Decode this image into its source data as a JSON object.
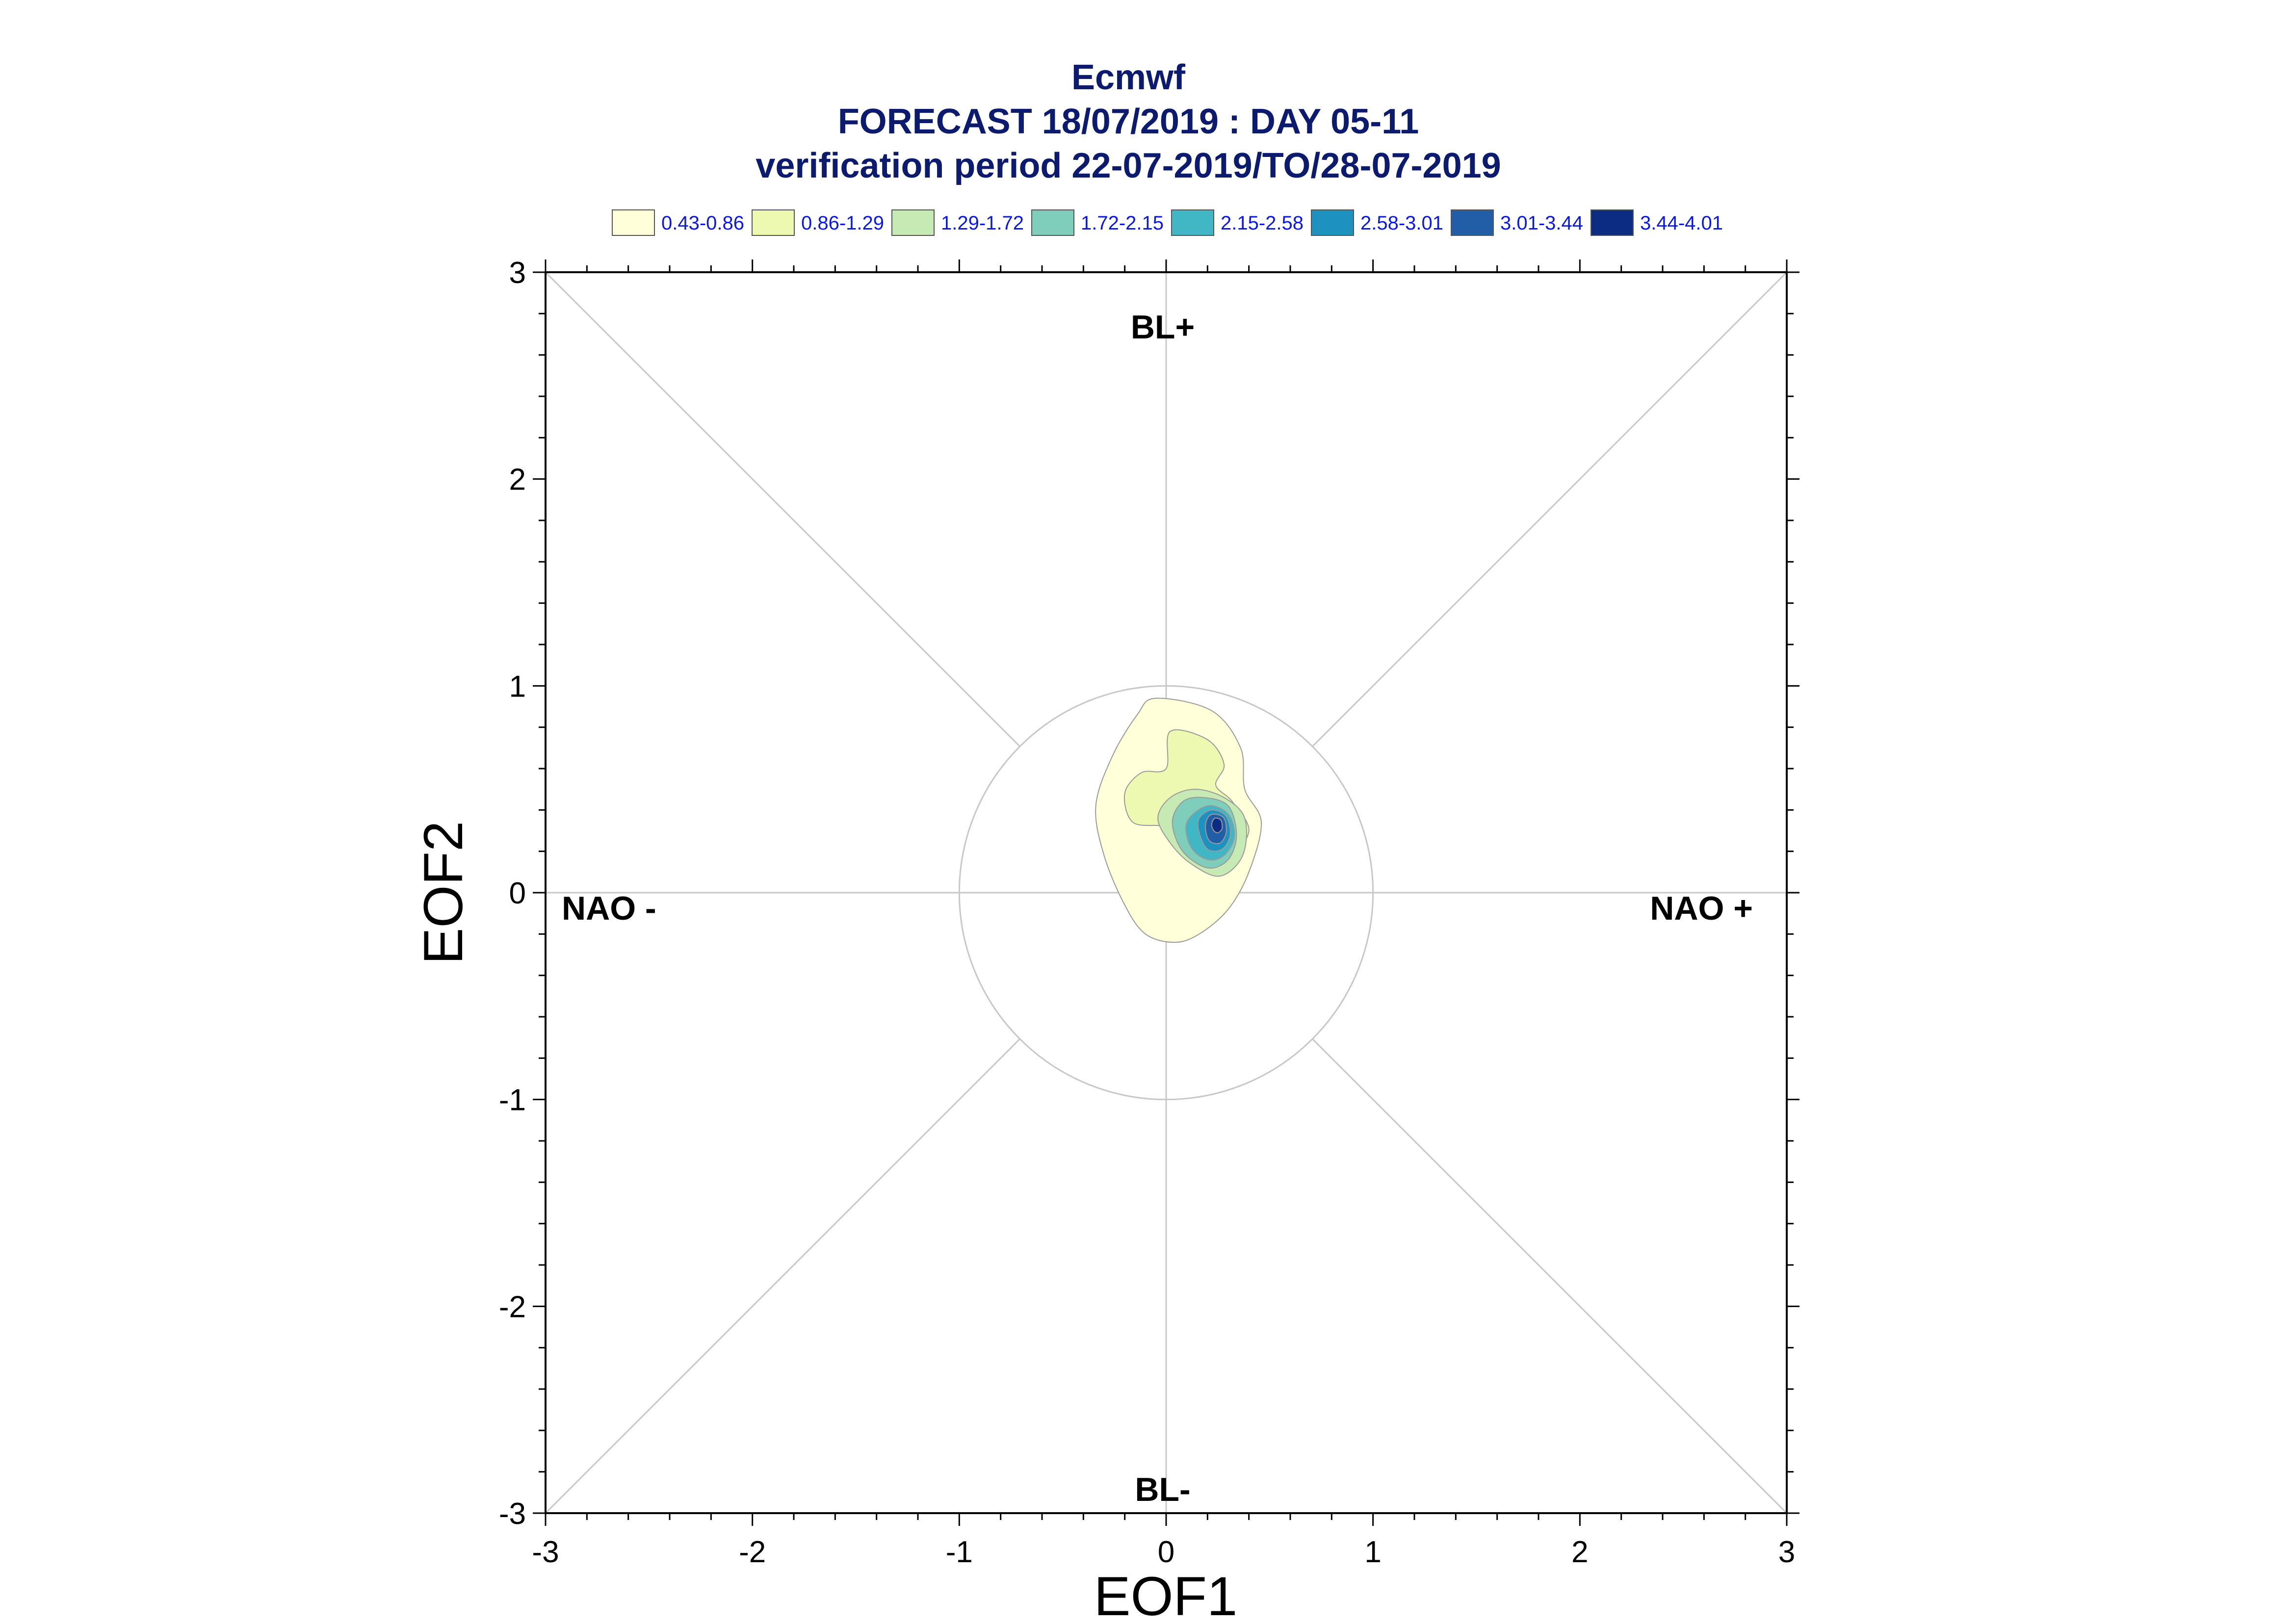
{
  "chart_data": {
    "type": "contour",
    "title": "Ecmwf",
    "subtitle_lines": [
      "FORECAST 18/07/2019 : DAY 05-11",
      "verification period 22-07-2019/TO/28-07-2019"
    ],
    "xlabel": "EOF1",
    "ylabel": "EOF2",
    "xlim": [
      -3,
      3
    ],
    "ylim": [
      -3,
      3
    ],
    "x_ticks": [
      "-3",
      "-2",
      "-1",
      "0",
      "1",
      "2",
      "3"
    ],
    "y_ticks": [
      "3",
      "2",
      "1",
      "0",
      "-1",
      "-2",
      "-3"
    ],
    "x_tick_values": [
      -3,
      -2,
      -1,
      0,
      1,
      2,
      3
    ],
    "y_tick_values": [
      3,
      2,
      1,
      0,
      -1,
      -2,
      -3
    ],
    "regime_labels": {
      "top": "BL+",
      "bottom": "BL-",
      "left": "NAO -",
      "right": "NAO +"
    },
    "reference_circle_radius": 1,
    "legend": [
      {
        "label": "0.43-0.86",
        "color": "#ffffd9"
      },
      {
        "label": "0.86-1.29",
        "color": "#edf8b1"
      },
      {
        "label": "1.29-1.72",
        "color": "#c7e9b4"
      },
      {
        "label": "1.72-2.15",
        "color": "#7fcdbb"
      },
      {
        "label": "2.15-2.58",
        "color": "#41b6c4"
      },
      {
        "label": "2.58-3.01",
        "color": "#1d91c0"
      },
      {
        "label": "3.01-3.44",
        "color": "#225ea8"
      },
      {
        "label": "3.44-4.01",
        "color": "#0c2c84"
      }
    ],
    "density_levels": [
      {
        "level": "0.43-0.86",
        "points": [
          [
            -0.05,
            0.94
          ],
          [
            0.22,
            0.88
          ],
          [
            0.36,
            0.7
          ],
          [
            0.38,
            0.5
          ],
          [
            0.46,
            0.34
          ],
          [
            0.4,
            0.1
          ],
          [
            0.3,
            -0.08
          ],
          [
            0.16,
            -0.2
          ],
          [
            0.04,
            -0.24
          ],
          [
            -0.1,
            -0.2
          ],
          [
            -0.2,
            -0.06
          ],
          [
            -0.3,
            0.18
          ],
          [
            -0.34,
            0.42
          ],
          [
            -0.26,
            0.66
          ],
          [
            -0.14,
            0.86
          ]
        ]
      },
      {
        "level": "0.86-1.29",
        "points": [
          [
            0.02,
            0.78
          ],
          [
            0.2,
            0.74
          ],
          [
            0.28,
            0.62
          ],
          [
            0.24,
            0.52
          ],
          [
            0.32,
            0.44
          ],
          [
            0.4,
            0.3
          ],
          [
            0.3,
            0.18
          ],
          [
            0.14,
            0.26
          ],
          [
            0.0,
            0.32
          ],
          [
            -0.16,
            0.34
          ],
          [
            -0.2,
            0.48
          ],
          [
            -0.12,
            0.58
          ],
          [
            0.0,
            0.6
          ]
        ]
      },
      {
        "level": "1.29-1.72",
        "points": [
          [
            0.14,
            0.5
          ],
          [
            0.28,
            0.46
          ],
          [
            0.38,
            0.36
          ],
          [
            0.37,
            0.18
          ],
          [
            0.26,
            0.08
          ],
          [
            0.12,
            0.14
          ],
          [
            0.02,
            0.24
          ],
          [
            -0.04,
            0.36
          ],
          [
            0.02,
            0.46
          ]
        ]
      },
      {
        "level": "1.72-2.15",
        "points": [
          [
            0.18,
            0.46
          ],
          [
            0.3,
            0.42
          ],
          [
            0.34,
            0.28
          ],
          [
            0.3,
            0.16
          ],
          [
            0.2,
            0.12
          ],
          [
            0.08,
            0.2
          ],
          [
            0.03,
            0.34
          ],
          [
            0.08,
            0.44
          ]
        ]
      },
      {
        "level": "2.15-2.58",
        "points": [
          [
            0.2,
            0.42
          ],
          [
            0.3,
            0.38
          ],
          [
            0.33,
            0.27
          ],
          [
            0.28,
            0.18
          ],
          [
            0.2,
            0.16
          ],
          [
            0.12,
            0.22
          ],
          [
            0.1,
            0.34
          ]
        ]
      },
      {
        "level": "2.58-3.01",
        "points": [
          [
            0.22,
            0.4
          ],
          [
            0.29,
            0.37
          ],
          [
            0.31,
            0.28
          ],
          [
            0.27,
            0.21
          ],
          [
            0.2,
            0.21
          ],
          [
            0.16,
            0.29
          ],
          [
            0.16,
            0.36
          ]
        ]
      },
      {
        "level": "3.01-3.44",
        "points": [
          [
            0.23,
            0.38
          ],
          [
            0.28,
            0.36
          ],
          [
            0.29,
            0.29
          ],
          [
            0.26,
            0.24
          ],
          [
            0.21,
            0.25
          ],
          [
            0.19,
            0.31
          ],
          [
            0.2,
            0.36
          ]
        ]
      },
      {
        "level": "3.44-4.01",
        "points": [
          [
            0.235,
            0.36
          ],
          [
            0.265,
            0.35
          ],
          [
            0.27,
            0.31
          ],
          [
            0.25,
            0.29
          ],
          [
            0.23,
            0.3
          ],
          [
            0.22,
            0.33
          ]
        ]
      }
    ]
  }
}
